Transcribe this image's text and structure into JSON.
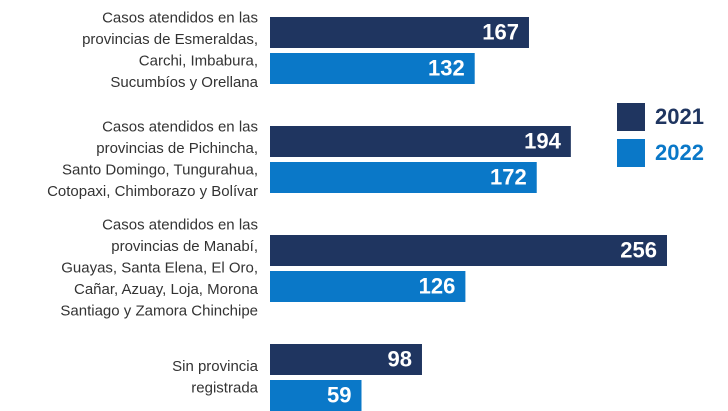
{
  "chart_data": {
    "type": "bar",
    "orientation": "horizontal",
    "categories": [
      "Casos atendidos en las\nprovincias de Esmeraldas,\nCarchi, Imbabura,\nSucumbíos y Orellana",
      "Casos atendidos en las\nprovincias de Pichincha,\nSanto Domingo, Tungurahua,\nCotopaxi, Chimborazo y Bolívar",
      "Casos atendidos en las\nprovincias de Manabí,\nGuayas, Santa Elena,  El Oro,\nCañar, Azuay, Loja, Morona\nSantiago y Zamora Chinchipe",
      "Sin provincia\nregistrada"
    ],
    "series": [
      {
        "name": "2021",
        "color": "#1f3560",
        "values": [
          167,
          194,
          256,
          98
        ]
      },
      {
        "name": "2022",
        "color": "#0a78c8",
        "values": [
          132,
          172,
          126,
          59
        ]
      }
    ],
    "legend": "right"
  }
}
